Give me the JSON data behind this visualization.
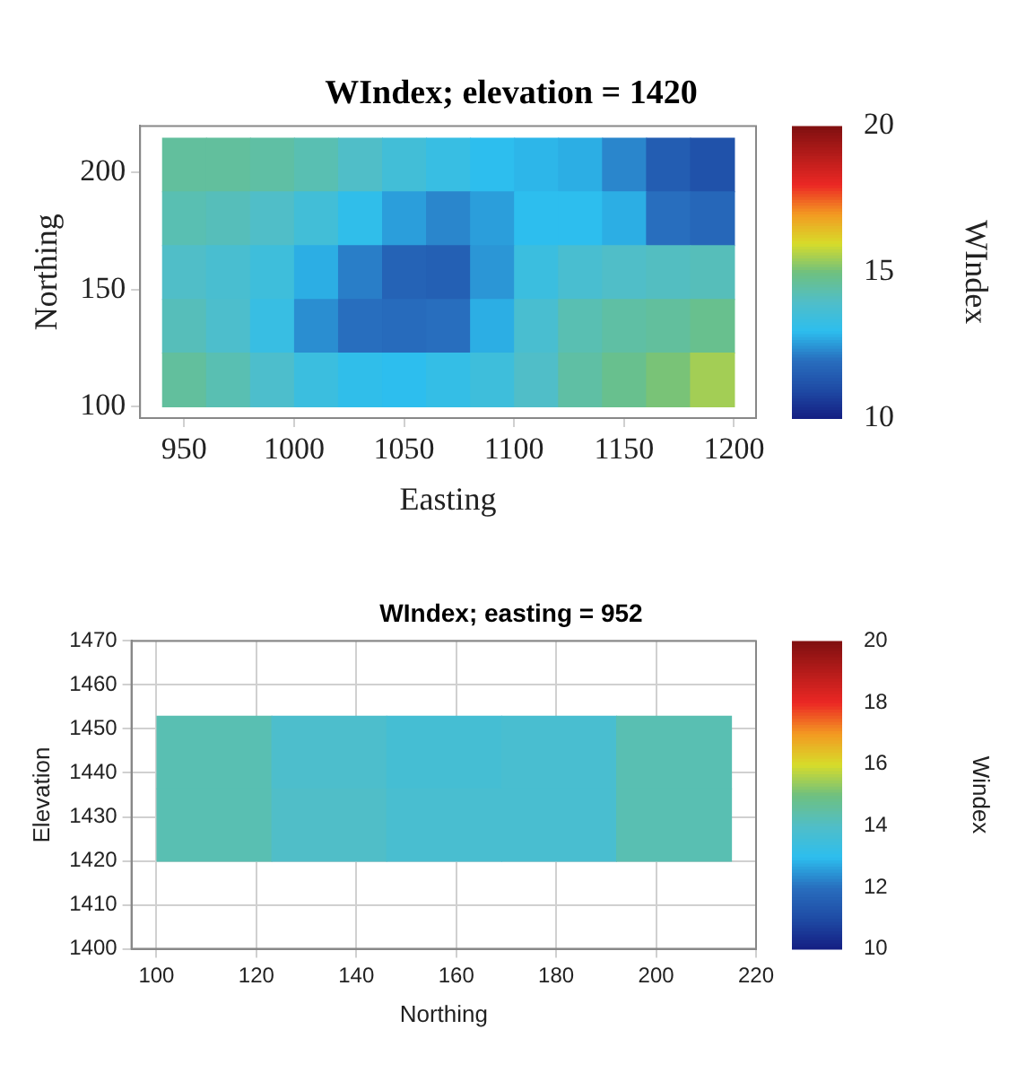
{
  "chart_data": [
    {
      "type": "heatmap",
      "title": "WIndex; elevation = 1420",
      "xlabel": "Easting",
      "ylabel": "Northing",
      "clabel": "WIndex",
      "x": [
        950,
        970,
        990,
        1010,
        1030,
        1050,
        1070,
        1090,
        1110,
        1130,
        1150,
        1170,
        1190
      ],
      "y": [
        203.5,
        180.5,
        157.5,
        134.5,
        111.5
      ],
      "cells": [
        [
          14.6,
          14.6,
          14.5,
          14.3,
          14.0,
          13.6,
          13.3,
          13.0,
          12.9,
          12.8,
          12.3,
          11.5,
          11.2
        ],
        [
          14.3,
          14.2,
          14.0,
          13.6,
          13.1,
          12.6,
          12.3,
          12.6,
          13.0,
          13.0,
          12.8,
          12.0,
          11.8
        ],
        [
          14.0,
          13.8,
          13.5,
          12.8,
          12.2,
          11.7,
          11.6,
          12.5,
          13.4,
          13.8,
          14.0,
          14.1,
          14.2
        ],
        [
          14.2,
          13.9,
          13.3,
          12.4,
          12.0,
          11.9,
          12.0,
          12.8,
          13.8,
          14.3,
          14.5,
          14.6,
          14.8
        ],
        [
          14.6,
          14.3,
          13.9,
          13.4,
          13.1,
          13.0,
          13.2,
          13.5,
          14.0,
          14.5,
          14.8,
          15.1,
          15.5
        ]
      ],
      "xlim": [
        930,
        1210
      ],
      "xticks": [
        950,
        1000,
        1050,
        1100,
        1150,
        1200
      ],
      "ylim": [
        95,
        220
      ],
      "yticks": [
        100,
        150,
        200
      ],
      "clim": [
        10,
        20
      ],
      "cticks": [
        10,
        15,
        20
      ],
      "grid": false
    },
    {
      "type": "heatmap",
      "title": "WIndex; easting = 952",
      "xlabel": "Northing",
      "ylabel": "Elevation",
      "clabel": "Windex",
      "x": [
        111.5,
        134.5,
        157.5,
        180.5,
        203.5
      ],
      "y": [
        1444.75,
        1428.25
      ],
      "cells": [
        [
          14.3,
          13.9,
          13.7,
          13.8,
          14.3
        ],
        [
          14.3,
          14.0,
          13.8,
          13.8,
          14.3
        ]
      ],
      "xlim": [
        95,
        220
      ],
      "xticks": [
        100,
        120,
        140,
        160,
        180,
        200,
        220
      ],
      "ylim": [
        1400,
        1470
      ],
      "yticks": [
        1400,
        1410,
        1420,
        1430,
        1440,
        1450,
        1460,
        1470
      ],
      "clim": [
        10,
        20
      ],
      "cticks": [
        10,
        12,
        14,
        16,
        18,
        20
      ],
      "grid": true
    }
  ]
}
